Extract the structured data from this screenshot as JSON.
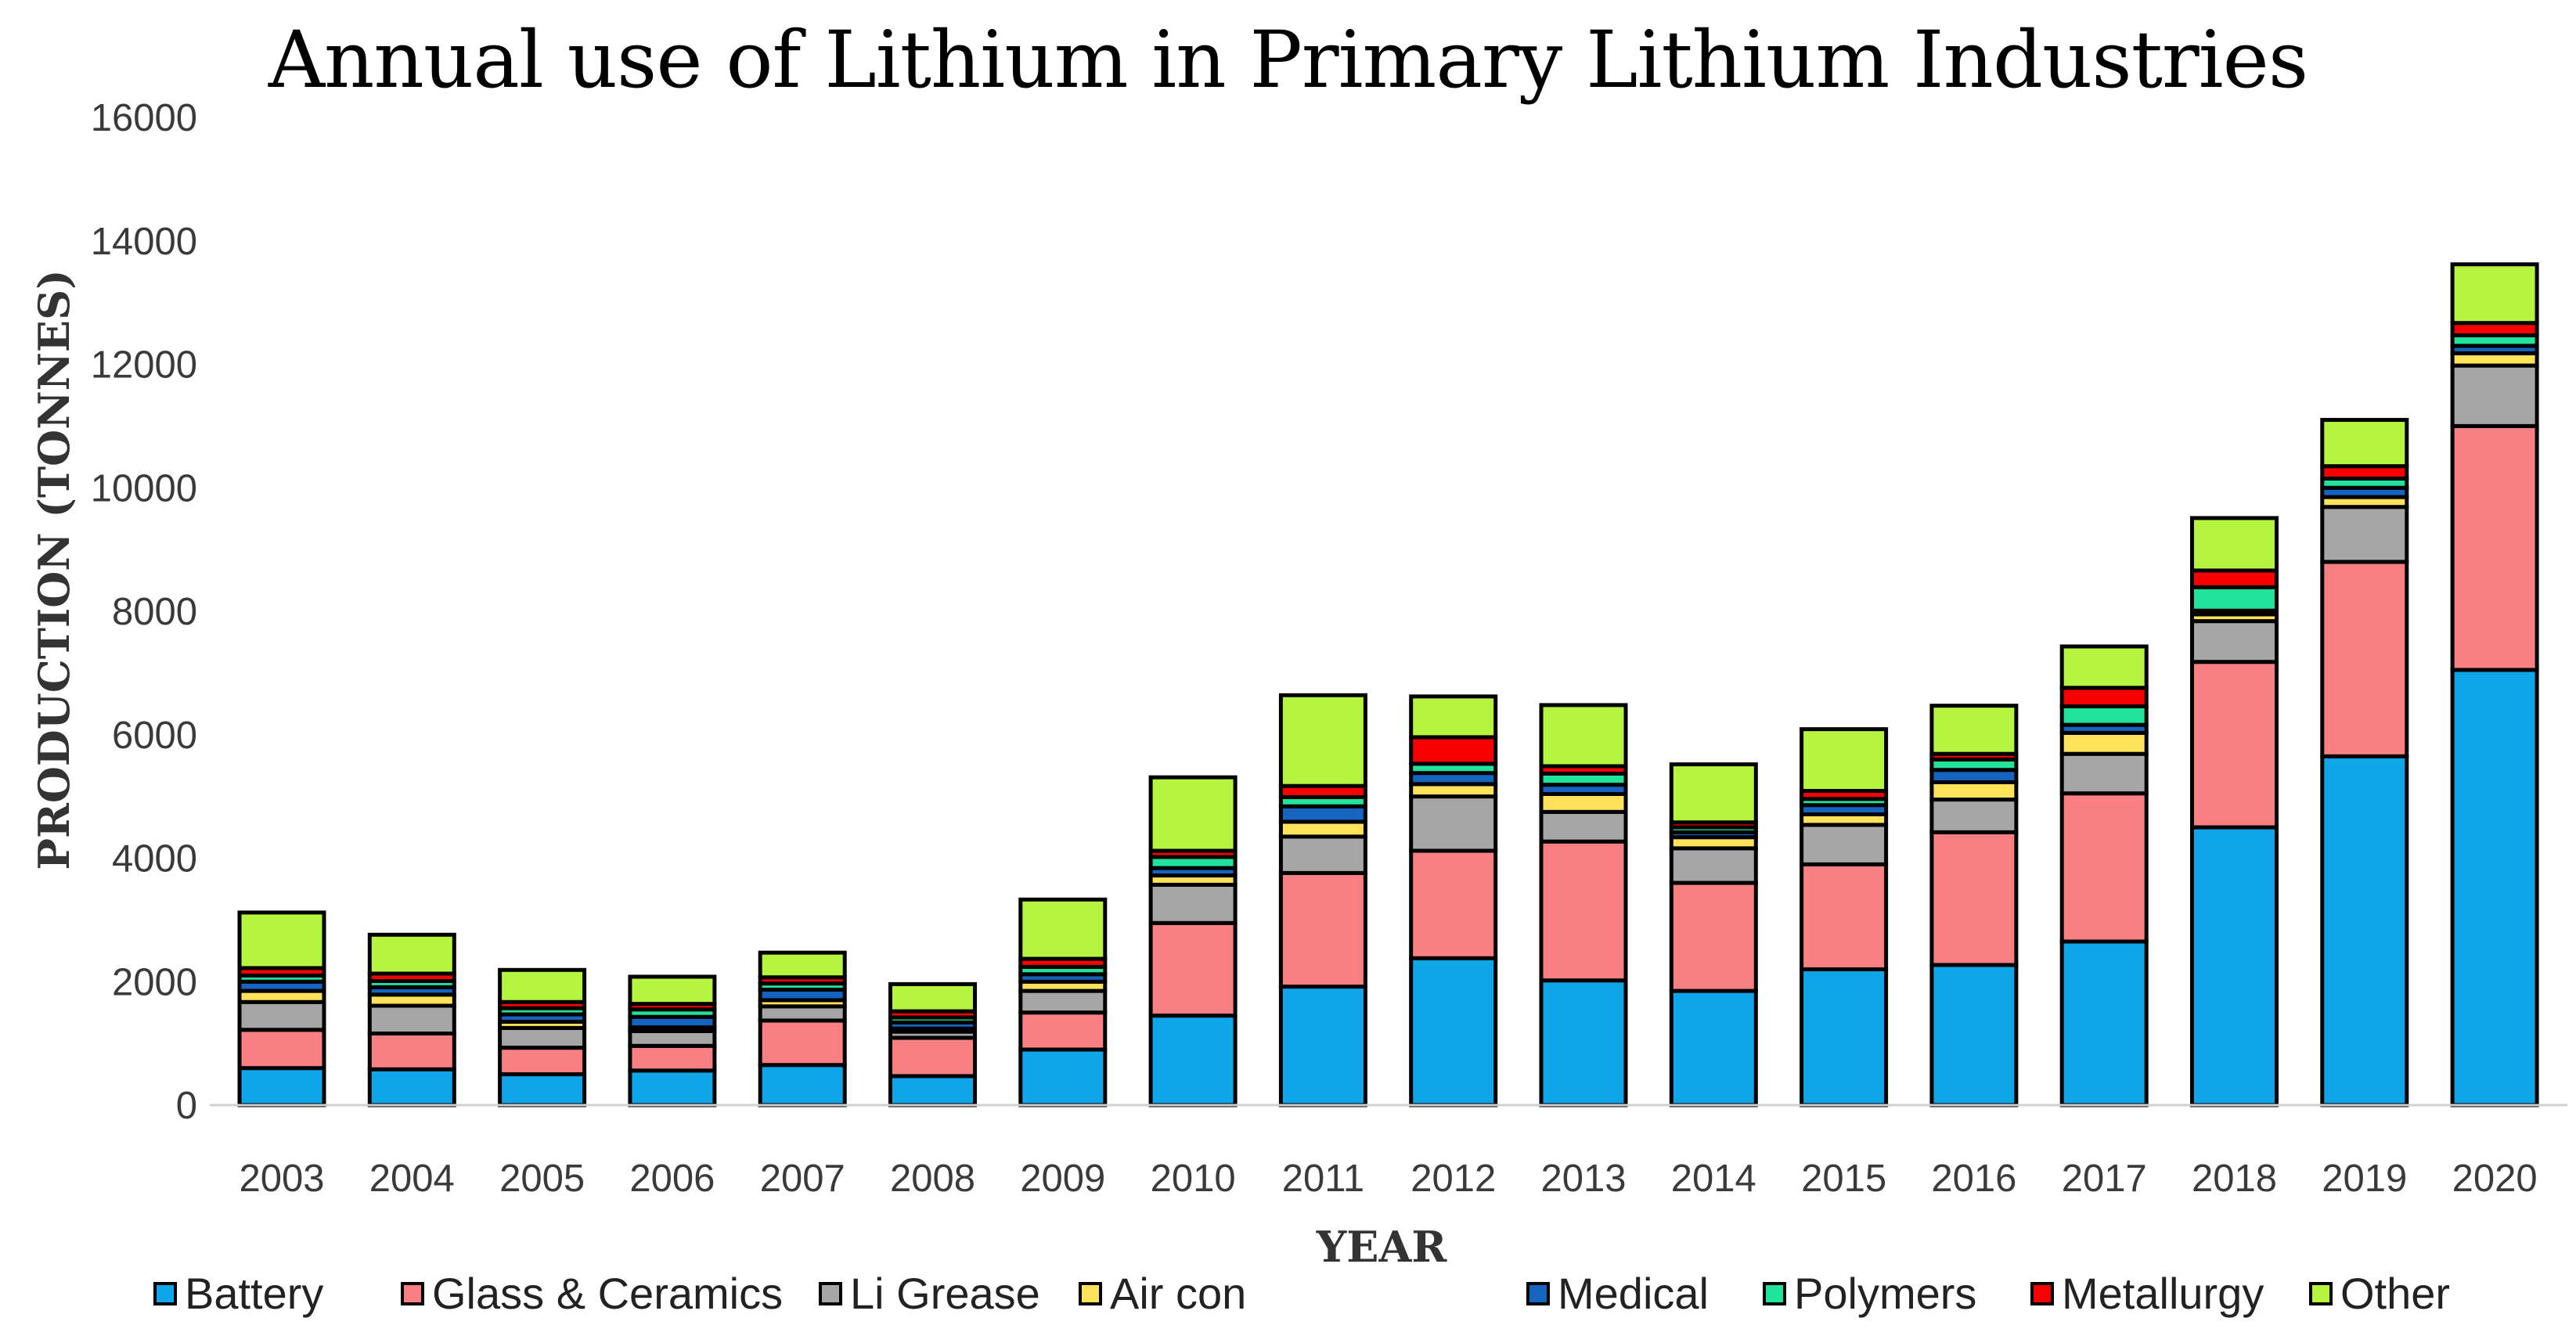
{
  "chart_data": {
    "type": "bar",
    "stacked": true,
    "title": "Annual use of Lithium in Primary Lithium Industries",
    "xlabel": "YEAR",
    "ylabel": "PRODUCTION (TONNES)",
    "ylim": [
      0,
      16000
    ],
    "yticks": [
      "0",
      "2000",
      "4000",
      "6000",
      "8000",
      "10000",
      "12000",
      "14000",
      "16000"
    ],
    "grid": false,
    "legend_position": "bottom",
    "categories": [
      "2003",
      "2004",
      "2005",
      "2006",
      "2007",
      "2008",
      "2009",
      "2010",
      "2011",
      "2012",
      "2013",
      "2014",
      "2015",
      "2016",
      "2017",
      "2018",
      "2019",
      "2020"
    ],
    "series": [
      {
        "name": "Battery",
        "color": "#0ea5e9",
        "values": [
          600,
          580,
          500,
          560,
          650,
          470,
          900,
          1450,
          1920,
          2380,
          2020,
          1850,
          2200,
          2270,
          2650,
          4500,
          5650,
          7050
        ]
      },
      {
        "name": "Glass & Ceramics",
        "color": "#f87f82",
        "values": [
          620,
          580,
          430,
          400,
          720,
          620,
          600,
          1500,
          1840,
          1740,
          2250,
          1750,
          1700,
          2150,
          2400,
          2680,
          3150,
          3950
        ]
      },
      {
        "name": "Li Grease",
        "color": "#a6a6a6",
        "values": [
          450,
          450,
          320,
          240,
          230,
          100,
          350,
          620,
          590,
          880,
          480,
          560,
          640,
          530,
          640,
          660,
          890,
          980
        ]
      },
      {
        "name": "Air con",
        "color": "#ffe259",
        "values": [
          180,
          180,
          100,
          60,
          100,
          50,
          150,
          150,
          240,
          200,
          290,
          180,
          170,
          280,
          340,
          110,
          160,
          200
        ]
      },
      {
        "name": "Medical",
        "color": "#1565c0",
        "values": [
          150,
          120,
          120,
          170,
          170,
          100,
          120,
          120,
          250,
          180,
          150,
          80,
          150,
          200,
          130,
          60,
          150,
          120
        ]
      },
      {
        "name": "Polymers",
        "color": "#22e39c",
        "values": [
          100,
          100,
          100,
          120,
          100,
          80,
          120,
          180,
          150,
          150,
          180,
          80,
          100,
          170,
          300,
          380,
          150,
          170
        ]
      },
      {
        "name": "Metallurgy",
        "color": "#f70000",
        "values": [
          120,
          120,
          100,
          90,
          100,
          100,
          130,
          100,
          180,
          430,
          120,
          80,
          130,
          90,
          300,
          270,
          200,
          200
        ]
      },
      {
        "name": "Other",
        "color": "#b5f53f",
        "values": [
          900,
          630,
          520,
          440,
          400,
          440,
          960,
          1190,
          1470,
          660,
          990,
          940,
          1000,
          780,
          670,
          850,
          750,
          950
        ]
      }
    ]
  }
}
